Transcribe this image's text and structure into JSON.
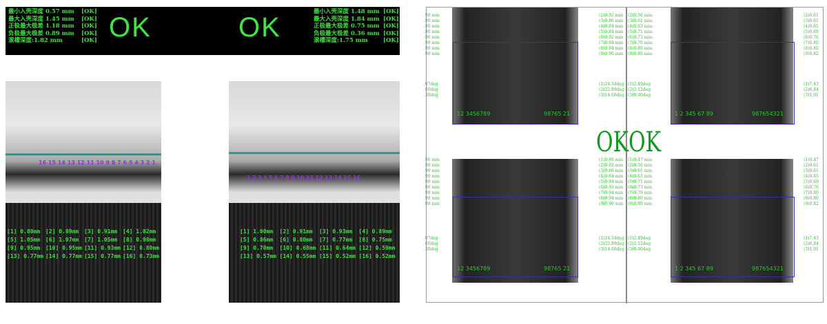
{
  "left_panel": {
    "a": {
      "status": "OK",
      "lines": [
        "最小入壳深度 0.57 mm",
        "最大入壳深度 1.45 mm",
        "正极最大极差 1.18 mm",
        "负极最大极差 0.89 mm",
        "滚槽深度:1.82 mm"
      ],
      "flags": [
        "[OK]",
        "[OK]",
        "[OK]",
        "[OK]",
        "[OK]"
      ],
      "labels": [
        "16",
        "15",
        "14",
        "13",
        "12",
        "11",
        "10",
        "9",
        "8",
        "7",
        "6",
        "5",
        "4",
        "3",
        "2",
        "1"
      ],
      "values": [
        "[1] 0.80mm",
        "[2] 0.89mm",
        "[3] 0.91mm",
        "[4] 1.02mm",
        "[5] 1.05mm",
        "[6] 1.07mm",
        "[7] 1.05mm",
        "[8] 0.98mm",
        "[9] 0.95mm",
        "[10] 0.95mm",
        "[11] 0.93mm",
        "[12] 0.80mm",
        "[13] 0.77mm",
        "[14] 0.77mm",
        "[15] 0.77mm",
        "[16] 0.73mm"
      ]
    },
    "b": {
      "status": "OK",
      "lines": [
        "最小入壳深度 1.48 mm",
        "最大入壳深度 1.84 mm",
        "正极最大极差 0.75 mm",
        "负极最大极差 0.36 mm",
        "滚槽深度:1.75 mm"
      ],
      "flags": [
        "[OK]",
        "[OK]",
        "[OK]",
        "[OK]",
        "[OK]"
      ],
      "labels": [
        "1",
        "2",
        "3",
        "4",
        "5",
        "6",
        "7",
        "8",
        "9",
        "10",
        "11",
        "12",
        "13",
        "14",
        "15",
        "16"
      ],
      "values": [
        "[1] 1.00mm",
        "[2] 0.91mm",
        "[3] 0.93mm",
        "[4] 0.89mm",
        "[5] 0.86mm",
        "[6] 0.80mm",
        "[7] 0.77mm",
        "[8] 0.75mm",
        "[9] 0.70mm",
        "[10] 0.68mm",
        "[11] 0.64mm",
        "[12] 0.59mm",
        "[13] 0.57mm",
        "[14] 0.55mm",
        "[15] 0.52mm",
        "[16] 0.52mm"
      ]
    }
  },
  "right_panel": {
    "ok_left": "OK",
    "ok_right": "OK",
    "quads": [
      {
        "edge": [
          ".98 mm",
          ".90 mm",
          ".90 mm",
          ".90 mm",
          ".96 mm",
          ".98 mm",
          ".98 mm",
          ".98 mm"
        ],
        "edge_deg": [
          ".07deg",
          ".00deg",
          ".30deg"
        ],
        "mid": [
          "(2)0.92 mm",
          "(3)0.86 mm",
          "(4)0.84 mm",
          "(5)0.84 mm",
          "(6)0.92 mm",
          "(7)0.94 mm",
          "(8)0.94 mm",
          "(9)0.90 mm"
        ],
        "mid_deg": [
          "(1)24.34deg",
          "(2)22.89deg",
          "(3)14.68deg"
        ],
        "r": [
          "(2)0.56 mm",
          "(3)0.61 mm",
          "(4)0.63 mm",
          "(5)0.71 mm",
          "(6)0.73 mm",
          "(7)0.76 mm",
          "(8)0.80 mm",
          "(9)0.80 mm"
        ],
        "r_deg": [
          "(1)2.49deg",
          "(2)2.12deg",
          "(3)0.00deg"
        ],
        "far": [
          "(2)0.61",
          "(3)0.61",
          "(4)0.65",
          "(5)0.69",
          "(6)0.76",
          "(7)0.80",
          "(8)0.80",
          "(9)0.82"
        ],
        "far_deg": [
          "(1)7.43",
          "(2)6.84",
          "(3)1.91"
        ],
        "l_labels": "12 3456789",
        "r_labels": "98765 21",
        "r_labels2": "1 2 345 67 89",
        "r_labels3": "987654321"
      },
      {
        "edge": [
          ".96 mm",
          ".98 mm",
          ".90 mm",
          ".90 mm",
          ".90 mm",
          ".96 mm",
          ".98 mm",
          ".98 mm",
          ".98 mm"
        ],
        "edge_deg": [
          ".07deg",
          ".00deg",
          ".30deg"
        ],
        "mid": [
          "(1)0.86 mm",
          "(2)0.92 mm",
          "(3)0.86 mm",
          "(4)0.84 mm",
          "(5)0.84 mm",
          "(6)0.92 mm",
          "(7)0.94 mm",
          "(8)0.94 mm",
          "(9)0.90 mm"
        ],
        "mid_deg": [
          "(1)24.34deg",
          "(2)22.89deg",
          "(3)14.68deg"
        ],
        "r": [
          "(1)0.47 mm",
          "(2)0.56 mm",
          "(3)0.61 mm",
          "(4)0.63 mm",
          "(5)0.71 mm",
          "(6)0.73 mm",
          "(7)0.76 mm",
          "(8)0.80 mm",
          "(9)0.80 mm"
        ],
        "r_deg": [
          "(1)2.49deg",
          "(2)2.12deg",
          "(3)0.00deg"
        ],
        "far": [
          "(1)0.47",
          "(2)0.61",
          "(3)0.61",
          "(4)0.65",
          "(5)0.69",
          "(6)0.76",
          "(7)0.80",
          "(8)0.80",
          "(9)0.82"
        ],
        "far_deg": [
          "(1)7.43",
          "(2)6.84",
          "(3)1.91"
        ],
        "l_labels": "12 3456789",
        "r_labels": "98765 21",
        "r_labels2": "1 2 345 67 89",
        "r_labels3": "987654321"
      }
    ]
  }
}
